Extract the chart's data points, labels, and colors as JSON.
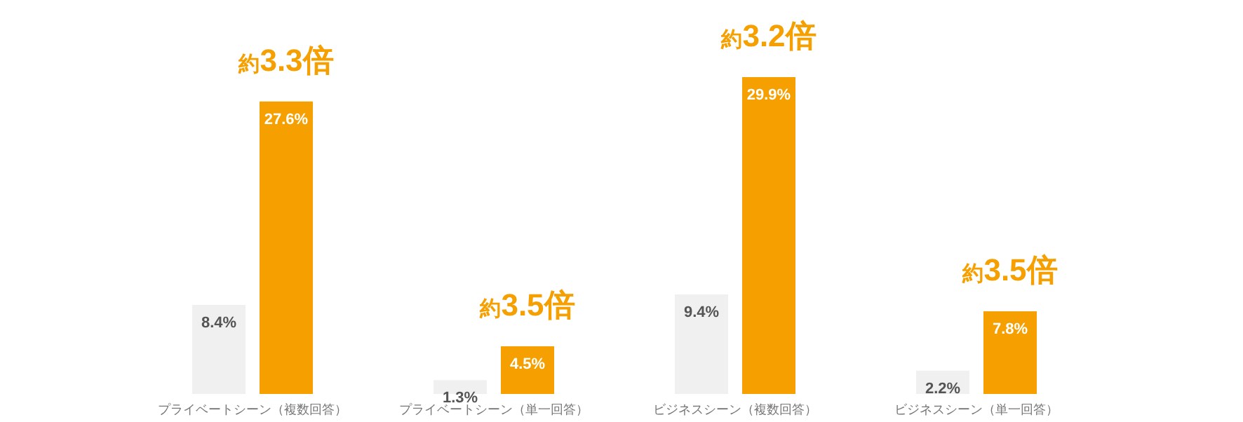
{
  "chart_data": {
    "type": "bar",
    "categories": [
      "プライベートシーン（複数回答）",
      "プライベートシーン（単一回答）",
      "ビジネスシーン（複数回答）",
      "ビジネスシーン（単一回答）"
    ],
    "series": [
      {
        "color": "#f0f0f0",
        "values": [
          8.4,
          1.3,
          9.4,
          2.2
        ],
        "value_labels": [
          "8.4%",
          "1.3%",
          "9.4%",
          "2.2%"
        ]
      },
      {
        "color": "#f5a000",
        "values": [
          27.6,
          4.5,
          29.9,
          7.8
        ],
        "value_labels": [
          "27.6%",
          "4.5%",
          "29.9%",
          "7.8%"
        ]
      }
    ],
    "annotations": [
      {
        "text": "約3.3倍",
        "x": "プライベートシーン（複数回答）",
        "y": 27.6
      },
      {
        "text": "約3.5倍",
        "x": "プライベートシーン（単一回答）",
        "y": 4.5
      },
      {
        "text": "約3.2倍",
        "x": "ビジネスシーン（複数回答）",
        "y": 29.9
      },
      {
        "text": "約3.5倍",
        "x": "ビジネスシーン（単一回答）",
        "y": 7.8
      }
    ]
  }
}
